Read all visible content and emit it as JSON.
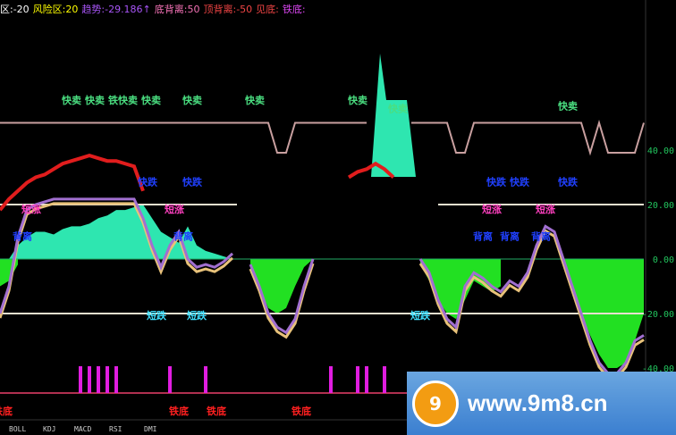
{
  "header": {
    "items": [
      {
        "text": "区:-20",
        "color": "#ffffff"
      },
      {
        "text": "风险区:20",
        "color": "#ffff00"
      },
      {
        "text": "趋势:-29.186↑",
        "color": "#a855f7"
      },
      {
        "text": "底背离:50",
        "color": "#f472b6"
      },
      {
        "text": "顶背离:-50",
        "color": "#ef4444"
      },
      {
        "text": "见底:",
        "color": "#ef4444"
      },
      {
        "text": "铁底:",
        "color": "#d946ef"
      }
    ]
  },
  "tabs": [
    "BOLL",
    "KDJ",
    "MACD",
    "RSI",
    "DMI"
  ],
  "watermark": {
    "url": "www.9m8.cn",
    "logo_text": "9m8"
  },
  "chart_data": {
    "type": "line",
    "ylim": [
      -40,
      50
    ],
    "yticks": [
      "40.00",
      "20.00",
      "0.00",
      "-20.00",
      "-40.00"
    ],
    "ytick_values": [
      40,
      20,
      0,
      -20,
      -40
    ],
    "reference_lines": [
      20,
      -20,
      0
    ],
    "colors": {
      "signal": "#c9a0a0",
      "trend": "#e11d1d",
      "osc": "#a16fd0",
      "osc_shadow": "#e8c27a",
      "fill_up": "#2ee6b0",
      "fill_down": "#22e022",
      "pulse": "#e11de1",
      "baseline": "#b03050",
      "ref": "#e8e0d0"
    },
    "signal": [
      50,
      50,
      50,
      50,
      50,
      50,
      50,
      50,
      50,
      50,
      50,
      50,
      50,
      50,
      50,
      50,
      50,
      50,
      50,
      50,
      50,
      50,
      50,
      50,
      50,
      50,
      50,
      50,
      50,
      50,
      50,
      39,
      39,
      50,
      50,
      50,
      50,
      50,
      50,
      50,
      50,
      50,
      null,
      null,
      null,
      null,
      50,
      50,
      50,
      50,
      50,
      39,
      39,
      50,
      50,
      50,
      50,
      50,
      50,
      50,
      50,
      50,
      50,
      50,
      50,
      50,
      39,
      50,
      39,
      39,
      39,
      39,
      50
    ],
    "trend": [
      18,
      22,
      25,
      28,
      30,
      31,
      33,
      35,
      36,
      37,
      38,
      37,
      36,
      36,
      35,
      34,
      25,
      null,
      null,
      null,
      null,
      null,
      null,
      null,
      null,
      null,
      null,
      null,
      null,
      null,
      null,
      null,
      null,
      null,
      null,
      null,
      null,
      null,
      null,
      30,
      32,
      33,
      35,
      33,
      30,
      null,
      null,
      null,
      null,
      null,
      null,
      null,
      null,
      null,
      null,
      null,
      null,
      null,
      null,
      null,
      null,
      null,
      null,
      null,
      null,
      null,
      null,
      null,
      null,
      null,
      null,
      null,
      null
    ],
    "osc": [
      -20,
      -10,
      8,
      18,
      20,
      21,
      22,
      22,
      22,
      22,
      22,
      22,
      22,
      22,
      22,
      22,
      15,
      5,
      -3,
      5,
      10,
      0,
      -3,
      -2,
      -3,
      -1,
      2,
      null,
      -2,
      -10,
      -20,
      -25,
      -27,
      -22,
      -10,
      0,
      null,
      null,
      null,
      null,
      null,
      null,
      null,
      null,
      null,
      null,
      null,
      0,
      -5,
      -15,
      -22,
      -25,
      -10,
      -5,
      -7,
      -10,
      -12,
      -8,
      -10,
      -5,
      5,
      12,
      10,
      0,
      -10,
      -20,
      -30,
      -38,
      -42,
      -42,
      -38,
      -30,
      -28
    ],
    "fill_up": [
      0,
      0,
      5,
      8,
      10,
      10,
      9,
      11,
      12,
      12,
      13,
      15,
      16,
      18,
      18,
      19,
      20,
      15,
      10,
      8,
      6,
      12,
      5,
      3,
      2,
      1,
      0,
      null,
      null,
      null,
      null,
      null,
      null,
      null,
      null,
      null,
      null,
      null,
      null,
      null,
      null,
      null,
      null,
      null,
      null,
      null,
      null,
      null,
      null,
      null,
      null,
      null,
      null,
      null,
      null,
      null,
      null,
      null,
      null,
      null,
      null,
      null,
      null,
      null,
      null,
      null,
      null,
      null,
      null,
      null,
      null,
      null,
      null
    ],
    "fill_down": [
      -10,
      -8,
      -2,
      null,
      null,
      null,
      null,
      null,
      null,
      null,
      null,
      null,
      null,
      null,
      null,
      null,
      null,
      null,
      null,
      null,
      null,
      null,
      null,
      null,
      null,
      null,
      null,
      null,
      -5,
      -10,
      -18,
      -20,
      -18,
      -10,
      -3,
      0,
      null,
      null,
      null,
      null,
      null,
      null,
      null,
      null,
      null,
      null,
      null,
      -2,
      -8,
      -15,
      -20,
      -22,
      -15,
      -8,
      -10,
      -12,
      -10,
      null,
      null,
      null,
      null,
      null,
      null,
      -2,
      -10,
      -20,
      -28,
      -35,
      -40,
      -40,
      -38,
      -30,
      -20
    ],
    "pulses": [
      9,
      10,
      11,
      12,
      13,
      19,
      23,
      37,
      40,
      41,
      43
    ],
    "annotations": [
      {
        "text": "快卖",
        "x": 8,
        "y": 57,
        "color": "#4ade80"
      },
      {
        "text": "快卖",
        "x": 10,
        "y": 57,
        "color": "#4ade80"
      },
      {
        "text": "铁快卖",
        "x": 13.5,
        "y": 57,
        "color": "#4ade80"
      },
      {
        "text": "快卖",
        "x": 15,
        "y": 57,
        "color": "#4ade80"
      },
      {
        "text": "快卖",
        "x": 21.5,
        "y": 57,
        "color": "#4ade80"
      },
      {
        "text": "快卖",
        "x": 28.5,
        "y": 57,
        "color": "#4ade80"
      },
      {
        "text": "快卖",
        "x": 40,
        "y": 57,
        "color": "#4ade80"
      },
      {
        "text": "快卖",
        "x": 44.5,
        "y": 54,
        "color": "#4ade80"
      },
      {
        "text": "快卖",
        "x": 63.5,
        "y": 55,
        "color": "#4ade80"
      },
      {
        "text": "快跌",
        "x": 16.5,
        "y": 27,
        "color": "#2040ff"
      },
      {
        "text": "快跌",
        "x": 21.5,
        "y": 27,
        "color": "#2040ff"
      },
      {
        "text": "快跌",
        "x": 55.5,
        "y": 27,
        "color": "#2040ff"
      },
      {
        "text": "快跌",
        "x": 57.5,
        "y": 27,
        "color": "#2040ff"
      },
      {
        "text": "快跌",
        "x": 63.5,
        "y": 27,
        "color": "#2040ff"
      },
      {
        "text": "短涨",
        "x": 3.5,
        "y": 17,
        "color": "#ff40c0"
      },
      {
        "text": "短涨",
        "x": 19.5,
        "y": 17,
        "color": "#ff40c0"
      },
      {
        "text": "短涨",
        "x": 55,
        "y": 17,
        "color": "#ff40c0"
      },
      {
        "text": "短涨",
        "x": 61,
        "y": 17,
        "color": "#ff40c0"
      },
      {
        "text": "背离",
        "x": 2.5,
        "y": 7,
        "color": "#2040ff"
      },
      {
        "text": "背离",
        "x": 20.5,
        "y": 7,
        "color": "#2040ff"
      },
      {
        "text": "背离",
        "x": 54,
        "y": 7,
        "color": "#2040ff"
      },
      {
        "text": "背离",
        "x": 57,
        "y": 7,
        "color": "#2040ff"
      },
      {
        "text": "背离",
        "x": 60.5,
        "y": 7,
        "color": "#2040ff"
      },
      {
        "text": "短跌",
        "x": 17.5,
        "y": -22,
        "color": "#40e0ff"
      },
      {
        "text": "短跌",
        "x": 22,
        "y": -22,
        "color": "#40e0ff"
      },
      {
        "text": "短跌",
        "x": 47,
        "y": -22,
        "color": "#40e0ff"
      },
      {
        "text": "铁底",
        "x": 0.3,
        "y": -57,
        "color": "#ff2020"
      },
      {
        "text": "铁底",
        "x": 20,
        "y": -57,
        "color": "#ff2020"
      },
      {
        "text": "铁底",
        "x": 24.2,
        "y": -57,
        "color": "#ff2020"
      },
      {
        "text": "铁底",
        "x": 33.7,
        "y": -57,
        "color": "#ff2020"
      }
    ]
  }
}
